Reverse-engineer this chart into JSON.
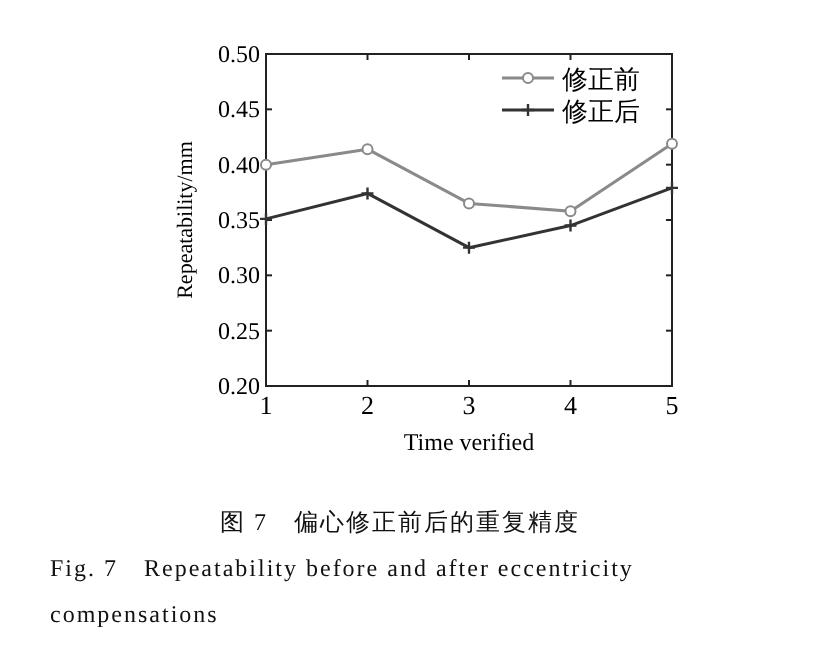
{
  "chart_data": {
    "type": "line",
    "xlabel": "Time verified",
    "ylabel": "Repeatability/mm",
    "x": [
      1,
      2,
      3,
      4,
      5
    ],
    "series": [
      {
        "name": "修正前",
        "color": "#8a8a8a",
        "marker": "circle",
        "values": [
          0.4,
          0.414,
          0.365,
          0.358,
          0.419
        ]
      },
      {
        "name": "修正后",
        "color": "#333333",
        "marker": "cross",
        "values": [
          0.351,
          0.374,
          0.325,
          0.345,
          0.379
        ]
      }
    ],
    "xlim": [
      1,
      5
    ],
    "xticks": [
      1,
      2,
      3,
      4,
      5
    ],
    "ylim": [
      0.2,
      0.5
    ],
    "yticks": [
      {
        "value": 0.2,
        "label": "0.20"
      },
      {
        "value": 0.25,
        "label": "0.25"
      },
      {
        "value": 0.3,
        "label": "0.30"
      },
      {
        "value": 0.35,
        "label": "0.35"
      },
      {
        "value": 0.4,
        "label": "0.40"
      },
      {
        "value": 0.45,
        "label": "0.45"
      },
      {
        "value": 0.5,
        "label": "0.50"
      }
    ],
    "legend": "top right",
    "grid": false,
    "annotations": [
      "图 7　偏心修正前后的重复精度",
      "Fig. 7　Repeatability before and after eccentricity compensations"
    ]
  }
}
